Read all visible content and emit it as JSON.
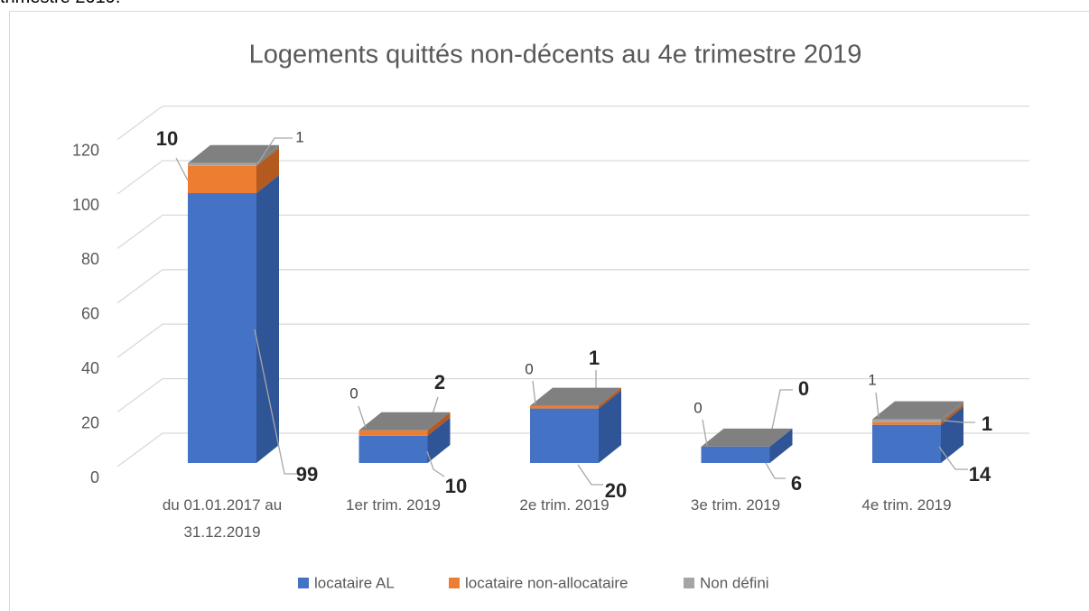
{
  "header_fragment": "trimestre 2019.",
  "chart_data": {
    "type": "bar3d_stacked",
    "title": "Logements quittés non-décents au 4e trimestre 2019",
    "categories": [
      "du 01.01.2017 au 31.12.2019",
      "1er trim. 2019",
      "2e trim. 2019",
      "3e trim. 2019",
      "4e trim. 2019"
    ],
    "series": [
      {
        "name": "locataire AL",
        "color": "#4472c4",
        "side": "#2f5597",
        "values": [
          99,
          10,
          20,
          6,
          14
        ]
      },
      {
        "name": "locataire non-allocataire",
        "color": "#ed7d31",
        "side": "#b4591f",
        "values": [
          10,
          2,
          1,
          0,
          1
        ]
      },
      {
        "name": "Non défini",
        "color": "#a5a5a5",
        "side": "#808080",
        "values": [
          1,
          0,
          0,
          0,
          1
        ]
      }
    ],
    "ylim": [
      0,
      120
    ],
    "yticks": [
      0,
      20,
      40,
      60,
      80,
      100,
      120
    ],
    "grid": true,
    "legend": "bottom"
  }
}
